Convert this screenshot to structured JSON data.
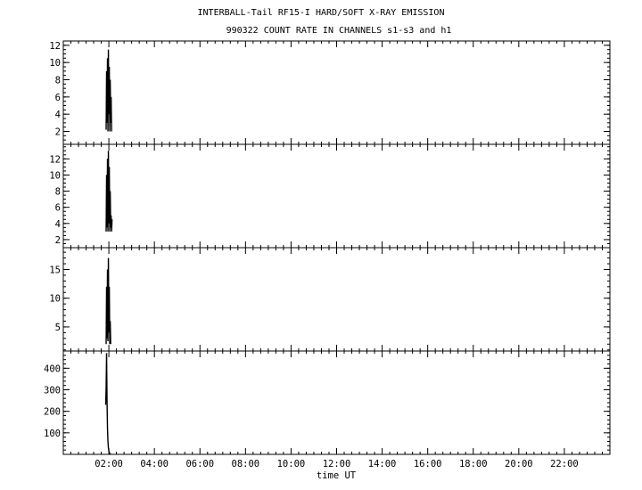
{
  "title": "INTERBALL-Tail RF15-I HARD/SOFT X-RAY EMISSION",
  "subtitle": "990322  COUNT RATE IN CHANNELS s1-s3 and h1",
  "chart_data": {
    "type": "line",
    "title": "INTERBALL-Tail RF15-I HARD/SOFT X-RAY EMISSION",
    "subtitle": "990322  COUNT RATE IN CHANNELS s1-s3 and h1",
    "xlabel": "time UT",
    "xlim": [
      0,
      24
    ],
    "xticks": [
      2,
      4,
      6,
      8,
      10,
      12,
      14,
      16,
      18,
      20,
      22
    ],
    "xtick_labels": [
      "02:00",
      "04:00",
      "06:00",
      "08:00",
      "10:00",
      "12:00",
      "14:00",
      "16:00",
      "18:00",
      "20:00",
      "22:00"
    ],
    "grid": false,
    "panels": [
      {
        "ylim": [
          0.5,
          12.5
        ],
        "yticks": [
          2,
          4,
          6,
          8,
          10,
          12
        ],
        "x": [
          1.88,
          1.9,
          1.92,
          1.94,
          1.96,
          1.98,
          2.0,
          2.02,
          2.04,
          2.06,
          2.08,
          2.1,
          2.12
        ],
        "y": [
          2.2,
          9.0,
          3.0,
          10.5,
          2.0,
          11.5,
          4.0,
          9.5,
          2.0,
          8.0,
          3.0,
          6.0,
          2.0
        ]
      },
      {
        "ylim": [
          1,
          13.8
        ],
        "yticks": [
          2,
          4,
          6,
          8,
          10,
          12
        ],
        "x": [
          1.88,
          1.9,
          1.92,
          1.94,
          1.96,
          1.98,
          2.0,
          2.02,
          2.04,
          2.06,
          2.08,
          2.1,
          2.12,
          2.14
        ],
        "y": [
          3.0,
          10.0,
          3.5,
          12.0,
          3.0,
          13.0,
          4.0,
          11.0,
          3.0,
          8.0,
          3.5,
          5.0,
          3.0,
          4.5
        ]
      },
      {
        "ylim": [
          0.8,
          18.8
        ],
        "yticks": [
          5,
          10,
          15
        ],
        "x": [
          1.88,
          1.9,
          1.92,
          1.94,
          1.96,
          1.98,
          2.0,
          2.02,
          2.04,
          2.06,
          2.08
        ],
        "y": [
          2.0,
          12.0,
          3.0,
          15.0,
          2.5,
          17.0,
          4.0,
          12.0,
          2.0,
          6.0,
          2.0
        ]
      },
      {
        "ylim": [
          0,
          480
        ],
        "yticks": [
          100,
          200,
          300,
          400
        ],
        "x": [
          1.86,
          1.88,
          1.9,
          1.92,
          1.94,
          1.96,
          1.98,
          2.0,
          2.02,
          2.04,
          2.06,
          2.08
        ],
        "y": [
          230,
          310,
          470,
          250,
          120,
          60,
          30,
          15,
          8,
          4,
          2,
          1
        ]
      }
    ]
  }
}
